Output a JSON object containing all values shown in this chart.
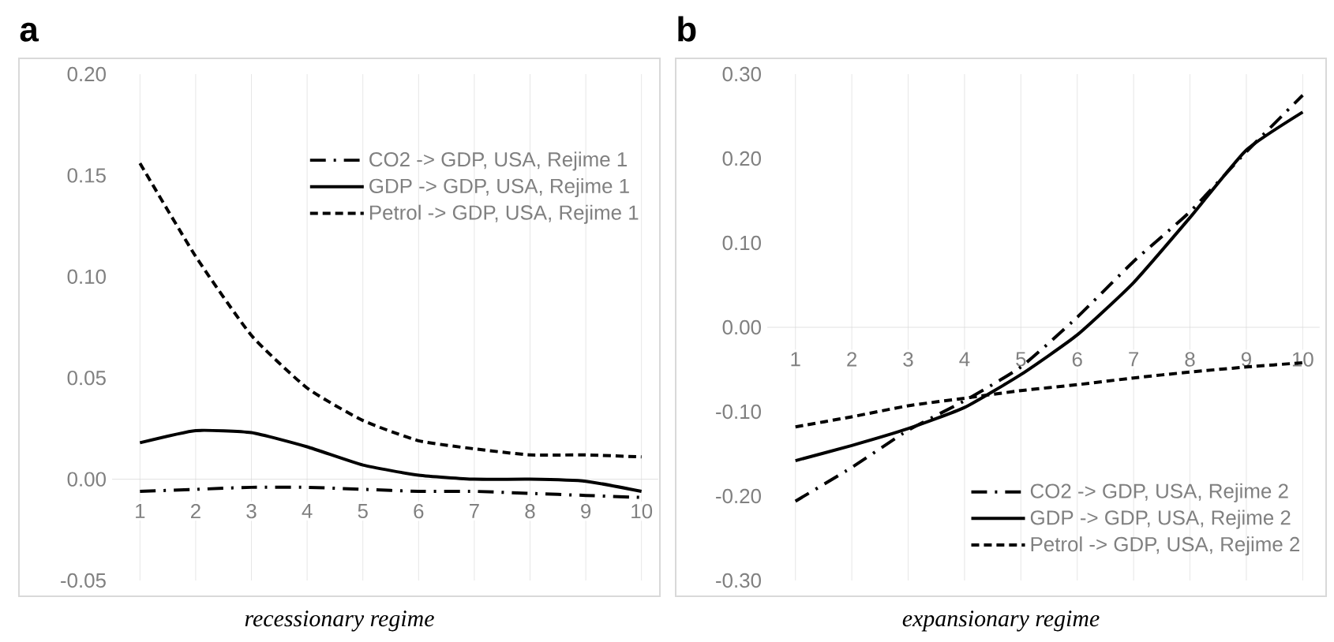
{
  "chart_data": [
    {
      "type": "line",
      "title": "a",
      "xlabel": "recessionary regime",
      "categories": [
        "1",
        "2",
        "3",
        "4",
        "5",
        "6",
        "7",
        "8",
        "9",
        "10"
      ],
      "series": [
        {
          "name": "CO2 -> GDP, USA, Rejime 1",
          "color": "#000000",
          "line_style": "dashdot",
          "values": [
            -0.006,
            -0.005,
            -0.004,
            -0.004,
            -0.005,
            -0.006,
            -0.006,
            -0.007,
            -0.008,
            -0.009
          ]
        },
        {
          "name": "GDP -> GDP, USA, Rejime 1",
          "color": "#000000",
          "line_style": "solid",
          "values": [
            0.018,
            0.024,
            0.023,
            0.016,
            0.007,
            0.002,
            0.0,
            0.0,
            -0.001,
            -0.006
          ]
        },
        {
          "name": "Petrol -> GDP, USA, Rejime 1",
          "color": "#000000",
          "line_style": "dashed",
          "values": [
            0.156,
            0.11,
            0.071,
            0.045,
            0.029,
            0.019,
            0.015,
            0.012,
            0.012,
            0.011
          ]
        }
      ],
      "ylim": [
        -0.05,
        0.2
      ],
      "yticks": [
        {
          "value": -0.05,
          "label": "-0.05"
        },
        {
          "value": 0,
          "label": "0.00"
        },
        {
          "value": 0.05,
          "label": "0.05"
        },
        {
          "value": 0.1,
          "label": "0.10"
        },
        {
          "value": 0.15,
          "label": "0.15"
        },
        {
          "value": 0.2,
          "label": "0.20"
        }
      ],
      "grid": "x",
      "legend": "top right"
    },
    {
      "type": "line",
      "title": "b",
      "xlabel": "expansionary regime",
      "categories": [
        "1",
        "2",
        "3",
        "4",
        "5",
        "6",
        "7",
        "8",
        "9",
        "10"
      ],
      "series": [
        {
          "name": "CO2 -> GDP, USA, Rejime 2",
          "color": "#000000",
          "line_style": "dashdot",
          "values": [
            -0.206,
            -0.166,
            -0.122,
            -0.087,
            -0.047,
            0.012,
            0.078,
            0.137,
            0.208,
            0.275
          ]
        },
        {
          "name": "GDP -> GDP, USA, Rejime 2",
          "color": "#000000",
          "line_style": "solid",
          "values": [
            -0.158,
            -0.14,
            -0.12,
            -0.095,
            -0.056,
            -0.009,
            0.053,
            0.13,
            0.21,
            0.255
          ]
        },
        {
          "name": "Petrol -> GDP, USA, Rejime 2",
          "color": "#000000",
          "line_style": "dashed",
          "values": [
            -0.118,
            -0.106,
            -0.093,
            -0.084,
            -0.075,
            -0.068,
            -0.06,
            -0.053,
            -0.047,
            -0.042
          ]
        }
      ],
      "ylim": [
        -0.3,
        0.3
      ],
      "yticks": [
        {
          "value": -0.3,
          "label": "-0.30"
        },
        {
          "value": -0.2,
          "label": "-0.20"
        },
        {
          "value": -0.1,
          "label": "-0.10"
        },
        {
          "value": 0,
          "label": "0.00"
        },
        {
          "value": 0.1,
          "label": "0.10"
        },
        {
          "value": 0.2,
          "label": "0.20"
        },
        {
          "value": 0.3,
          "label": "0.30"
        }
      ],
      "grid": "x",
      "legend": "bottom right"
    }
  ]
}
